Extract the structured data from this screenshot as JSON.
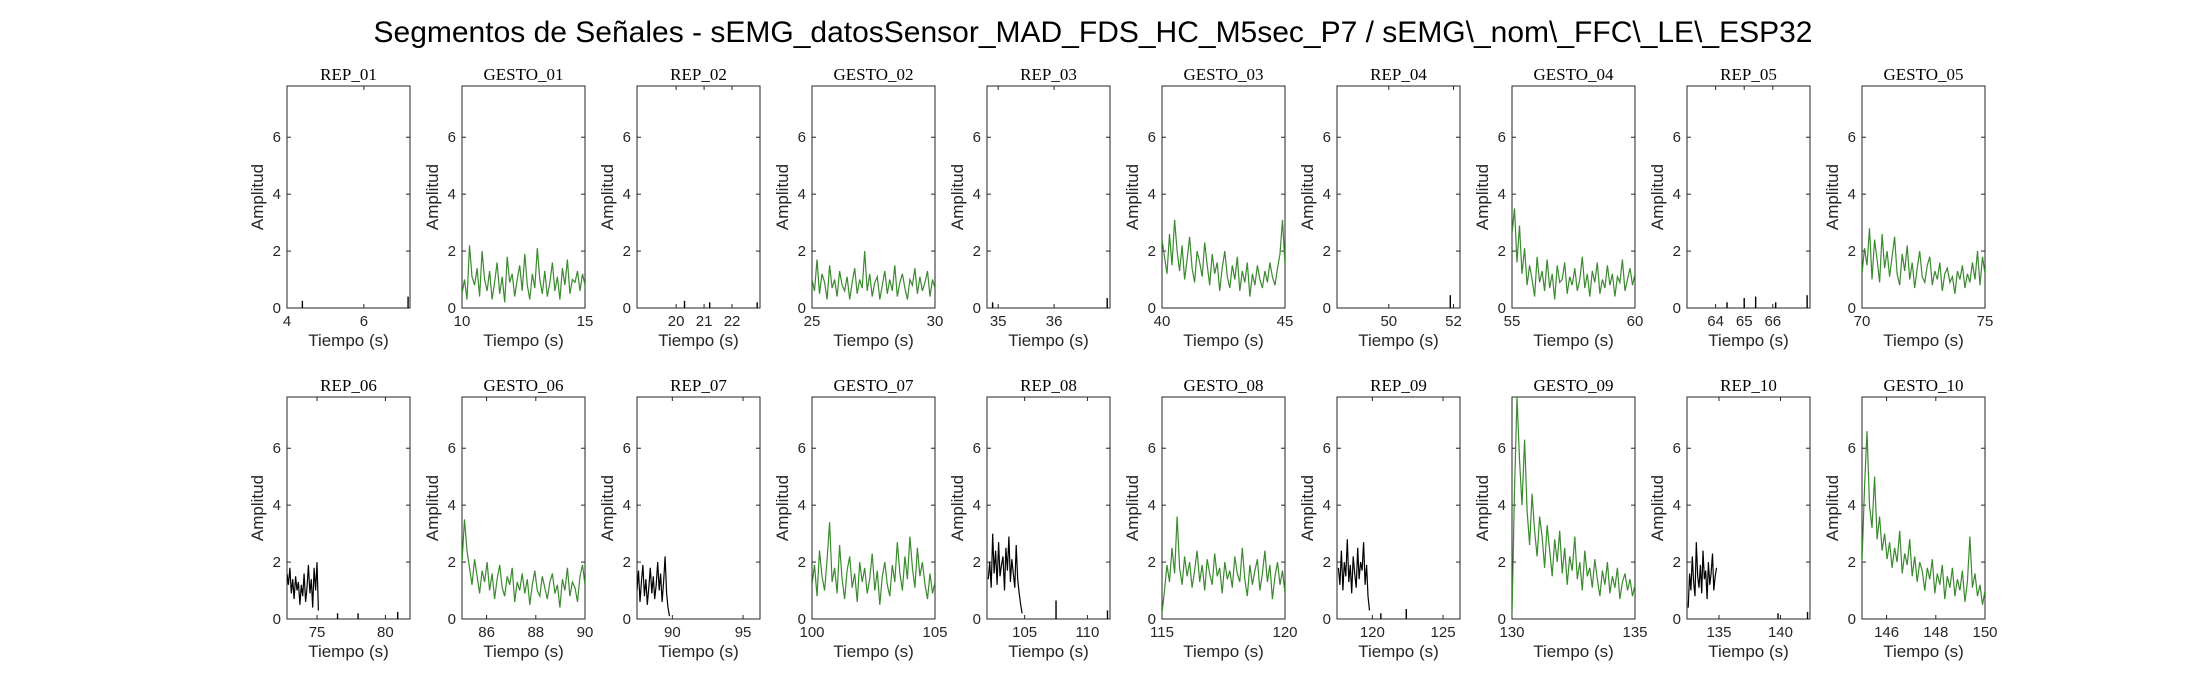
{
  "figure_title": "Segmentos de Señales - sEMG_datosSensor_MAD_FDS_HC_M5sec_P7 / sEMG\\_nom\\_FFC\\_LE\\_ESP32",
  "colors": {
    "rep": "#000000",
    "gesto": "#3a8a2e",
    "axis": "#262626"
  },
  "chart_data": [
    {
      "type": "line",
      "title": "REP_01",
      "xlabel": "Tiempo (s)",
      "ylabel": "Amplitud",
      "xlim": [
        4,
        7.2
      ],
      "ylim": [
        0,
        7.8
      ],
      "xticks": [
        4,
        6
      ],
      "yticks": [
        0,
        2,
        4,
        6
      ],
      "series_color": "rep",
      "x_range": [
        4,
        7.2
      ],
      "segments": [
        {
          "x": 4.4,
          "y": 0.25
        },
        {
          "x": 7.15,
          "y": 0.4
        }
      ]
    },
    {
      "type": "line",
      "title": "GESTO_01",
      "xlabel": "Tiempo (s)",
      "ylabel": "Amplitud",
      "xlim": [
        10,
        15
      ],
      "ylim": [
        0,
        7.8
      ],
      "xticks": [
        10,
        15
      ],
      "yticks": [
        0,
        2,
        4,
        6
      ],
      "series_color": "gesto",
      "x_range": [
        10,
        15
      ],
      "y": [
        0.5,
        1.0,
        0.3,
        2.2,
        1.1,
        0.8,
        1.4,
        0.4,
        2.0,
        1.0,
        0.6,
        1.3,
        0.3,
        0.9,
        1.6,
        0.5,
        1.1,
        0.2,
        1.8,
        0.9,
        1.2,
        0.4,
        1.0,
        1.5,
        0.6,
        1.9,
        0.8,
        0.3,
        1.2,
        0.7,
        2.1,
        1.0,
        0.5,
        1.3,
        0.4,
        0.9,
        1.6,
        0.6,
        1.1,
        0.3,
        1.4,
        0.8,
        1.7,
        0.5,
        1.0,
        0.9,
        1.3,
        0.6,
        1.2,
        0.8
      ]
    },
    {
      "type": "line",
      "title": "REP_02",
      "xlabel": "Tiempo (s)",
      "ylabel": "Amplitud",
      "xlim": [
        18.6,
        23.0
      ],
      "ylim": [
        0,
        7.8
      ],
      "xticks": [
        20,
        21,
        22
      ],
      "yticks": [
        0,
        2,
        4,
        6
      ],
      "series_color": "rep",
      "x_range": [
        18.6,
        23.0
      ],
      "segments": [
        {
          "x": 20.3,
          "y": 0.25
        },
        {
          "x": 21.2,
          "y": 0.2
        },
        {
          "x": 22.9,
          "y": 0.2
        }
      ]
    },
    {
      "type": "line",
      "title": "GESTO_02",
      "xlabel": "Tiempo (s)",
      "ylabel": "Amplitud",
      "xlim": [
        25,
        30
      ],
      "ylim": [
        0,
        7.8
      ],
      "xticks": [
        25,
        30
      ],
      "yticks": [
        0,
        2,
        4,
        6
      ],
      "series_color": "gesto",
      "x_range": [
        25,
        30
      ],
      "y": [
        1.0,
        0.6,
        1.7,
        0.5,
        1.2,
        0.9,
        0.3,
        1.5,
        0.7,
        1.0,
        0.4,
        1.3,
        0.8,
        0.6,
        1.1,
        0.3,
        0.9,
        1.4,
        0.5,
        1.0,
        0.7,
        2.0,
        0.6,
        1.2,
        0.4,
        0.9,
        1.1,
        0.3,
        0.8,
        1.3,
        0.5,
        1.0,
        0.6,
        1.5,
        0.4,
        0.9,
        1.2,
        0.7,
        0.3,
        1.0,
        0.8,
        1.4,
        0.5,
        1.1,
        0.6,
        0.9,
        1.3,
        0.4,
        1.0,
        0.7
      ]
    },
    {
      "type": "line",
      "title": "REP_03",
      "xlabel": "Tiempo (s)",
      "ylabel": "Amplitud",
      "xlim": [
        34.8,
        37.0
      ],
      "ylim": [
        0,
        7.8
      ],
      "xticks": [
        35,
        36
      ],
      "yticks": [
        0,
        2,
        4,
        6
      ],
      "series_color": "rep",
      "x_range": [
        34.8,
        37.0
      ],
      "segments": [
        {
          "x": 34.9,
          "y": 0.2
        },
        {
          "x": 36.95,
          "y": 0.35
        }
      ]
    },
    {
      "type": "line",
      "title": "GESTO_03",
      "xlabel": "Tiempo (s)",
      "ylabel": "Amplitud",
      "xlim": [
        40,
        45
      ],
      "ylim": [
        0,
        7.8
      ],
      "xticks": [
        40,
        45
      ],
      "yticks": [
        0,
        2,
        4,
        6
      ],
      "series_color": "gesto",
      "x_range": [
        40,
        45
      ],
      "y": [
        2.4,
        1.8,
        1.2,
        2.6,
        1.5,
        3.1,
        2.0,
        1.3,
        2.2,
        1.0,
        1.7,
        2.5,
        1.4,
        0.9,
        2.0,
        1.6,
        1.1,
        2.3,
        1.5,
        0.8,
        1.9,
        1.2,
        1.6,
        0.6,
        1.4,
        2.0,
        1.1,
        0.7,
        1.5,
        1.0,
        1.8,
        0.6,
        1.3,
        0.9,
        1.6,
        0.4,
        1.2,
        0.8,
        1.5,
        1.0,
        0.7,
        1.3,
        0.9,
        1.6,
        1.1,
        0.8,
        1.4,
        1.9,
        3.1,
        1.5
      ]
    },
    {
      "type": "line",
      "title": "REP_04",
      "xlabel": "Tiempo (s)",
      "ylabel": "Amplitud",
      "xlim": [
        48.4,
        52.2
      ],
      "ylim": [
        0,
        7.8
      ],
      "xticks": [
        50,
        52
      ],
      "yticks": [
        0,
        2,
        4,
        6
      ],
      "series_color": "rep",
      "x_range": [
        48.4,
        52.2
      ],
      "segments": [
        {
          "x": 51.9,
          "y": 0.45
        }
      ]
    },
    {
      "type": "line",
      "title": "GESTO_04",
      "xlabel": "Tiempo (s)",
      "ylabel": "Amplitud",
      "xlim": [
        55,
        60
      ],
      "ylim": [
        0,
        7.8
      ],
      "xticks": [
        55,
        60
      ],
      "yticks": [
        0,
        2,
        4,
        6
      ],
      "series_color": "gesto",
      "x_range": [
        55,
        60
      ],
      "y": [
        2.6,
        3.5,
        1.6,
        2.9,
        1.2,
        2.1,
        0.8,
        1.5,
        1.0,
        0.4,
        1.8,
        0.9,
        1.3,
        0.6,
        1.7,
        0.7,
        1.2,
        0.3,
        1.5,
        0.9,
        1.0,
        1.6,
        0.5,
        1.1,
        0.8,
        1.4,
        0.6,
        1.0,
        1.8,
        0.7,
        1.2,
        0.4,
        1.3,
        0.9,
        1.6,
        0.5,
        1.0,
        0.7,
        1.5,
        0.8,
        1.2,
        0.4,
        1.1,
        0.9,
        1.7,
        0.6,
        1.0,
        1.4,
        0.8,
        1.2
      ]
    },
    {
      "type": "line",
      "title": "REP_05",
      "xlabel": "Tiempo (s)",
      "ylabel": "Amplitud",
      "xlim": [
        63.0,
        67.3
      ],
      "ylim": [
        0,
        7.8
      ],
      "xticks": [
        64,
        65,
        66
      ],
      "yticks": [
        0,
        2,
        4,
        6
      ],
      "series_color": "rep",
      "x_range": [
        63.0,
        67.3
      ],
      "segments": [
        {
          "x": 64.4,
          "y": 0.2
        },
        {
          "x": 65.0,
          "y": 0.35
        },
        {
          "x": 65.4,
          "y": 0.4
        },
        {
          "x": 66.1,
          "y": 0.2
        },
        {
          "x": 67.2,
          "y": 0.45
        }
      ]
    },
    {
      "type": "line",
      "title": "GESTO_05",
      "xlabel": "Tiempo (s)",
      "ylabel": "Amplitud",
      "xlim": [
        70,
        75
      ],
      "ylim": [
        0,
        7.8
      ],
      "xticks": [
        70,
        75
      ],
      "yticks": [
        0,
        2,
        4,
        6
      ],
      "series_color": "gesto",
      "x_range": [
        70,
        75
      ],
      "y": [
        1.2,
        2.1,
        1.5,
        2.8,
        1.0,
        2.4,
        1.7,
        0.9,
        2.6,
        1.4,
        2.0,
        1.1,
        1.8,
        2.5,
        1.2,
        0.8,
        1.9,
        1.3,
        2.2,
        1.0,
        1.6,
        0.7,
        1.4,
        2.0,
        1.1,
        0.9,
        1.5,
        1.8,
        0.8,
        1.3,
        1.0,
        1.6,
        0.6,
        1.2,
        1.4,
        0.9,
        1.1,
        0.5,
        1.3,
        1.0,
        1.5,
        0.7,
        1.2,
        0.9,
        1.6,
        1.0,
        2.0,
        0.8,
        1.8,
        1.2
      ]
    },
    {
      "type": "line",
      "title": "REP_06",
      "xlabel": "Tiempo (s)",
      "ylabel": "Amplitud",
      "xlim": [
        72.8,
        81.8
      ],
      "ylim": [
        0,
        7.8
      ],
      "xticks": [
        75,
        80
      ],
      "yticks": [
        0,
        2,
        4,
        6
      ],
      "series_color": "rep",
      "x_range": [
        72.8,
        81.8
      ],
      "trace_x": [
        72.8,
        75.1
      ],
      "y": [
        1.6,
        1.2,
        1.8,
        0.9,
        1.4,
        0.7,
        1.5,
        1.0,
        1.3,
        0.5,
        1.2,
        0.8,
        1.6,
        0.6,
        1.1,
        1.9,
        0.9,
        1.4,
        0.4,
        1.8,
        1.0,
        2.0,
        0.3
      ],
      "segments": [
        {
          "x": 76.5,
          "y": 0.2
        },
        {
          "x": 78.0,
          "y": 0.2
        },
        {
          "x": 80.9,
          "y": 0.25
        }
      ]
    },
    {
      "type": "line",
      "title": "GESTO_06",
      "xlabel": "Tiempo (s)",
      "ylabel": "Amplitud",
      "xlim": [
        85,
        90
      ],
      "ylim": [
        0,
        7.8
      ],
      "xticks": [
        86,
        88,
        90
      ],
      "yticks": [
        0,
        2,
        4,
        6
      ],
      "series_color": "gesto",
      "x_range": [
        85,
        90
      ],
      "y": [
        2.0,
        3.5,
        2.4,
        1.8,
        1.2,
        2.1,
        1.5,
        0.9,
        1.7,
        1.3,
        2.0,
        1.0,
        1.6,
        0.7,
        1.4,
        1.9,
        1.1,
        0.8,
        1.5,
        1.2,
        1.8,
        0.6,
        1.3,
        1.0,
        1.6,
        0.9,
        1.4,
        0.5,
        1.2,
        1.7,
        1.0,
        0.8,
        1.5,
        1.1,
        0.7,
        1.3,
        1.6,
        0.9,
        1.2,
        0.4,
        1.4,
        1.0,
        1.8,
        0.8,
        1.3,
        1.1,
        0.6,
        1.5,
        1.9,
        1.2
      ]
    },
    {
      "type": "line",
      "title": "REP_07",
      "xlabel": "Tiempo (s)",
      "ylabel": "Amplitud",
      "xlim": [
        87.5,
        96.2
      ],
      "ylim": [
        0,
        7.8
      ],
      "xticks": [
        90,
        95
      ],
      "yticks": [
        0,
        2,
        4,
        6
      ],
      "series_color": "rep",
      "x_range": [
        87.5,
        96.2
      ],
      "trace_x": [
        87.5,
        89.8
      ],
      "y": [
        1.0,
        1.7,
        0.6,
        1.3,
        1.9,
        0.8,
        1.4,
        0.5,
        1.1,
        1.8,
        0.9,
        1.5,
        0.7,
        1.2,
        2.0,
        1.0,
        1.6,
        0.6,
        1.3,
        2.2,
        0.9,
        0.4,
        0.1
      ]
    },
    {
      "type": "line",
      "title": "GESTO_07",
      "xlabel": "Tiempo (s)",
      "ylabel": "Amplitud",
      "xlim": [
        100,
        105
      ],
      "ylim": [
        0,
        7.8
      ],
      "xticks": [
        100,
        105
      ],
      "yticks": [
        0,
        2,
        4,
        6
      ],
      "series_color": "gesto",
      "x_range": [
        100,
        105
      ],
      "y": [
        1.2,
        1.9,
        0.8,
        2.4,
        1.5,
        1.0,
        2.1,
        3.4,
        1.3,
        1.8,
        0.9,
        2.6,
        1.4,
        0.7,
        1.7,
        2.2,
        1.1,
        1.6,
        0.6,
        2.0,
        1.3,
        1.8,
        0.9,
        1.4,
        2.3,
        1.0,
        1.7,
        0.5,
        1.5,
        2.0,
        1.2,
        0.8,
        1.9,
        1.3,
        2.7,
        1.6,
        1.0,
        2.2,
        1.4,
        2.9,
        1.8,
        1.1,
        2.5,
        1.5,
        2.0,
        1.2,
        0.7,
        1.6,
        0.9,
        1.3
      ]
    },
    {
      "type": "line",
      "title": "REP_08",
      "xlabel": "Tiempo (s)",
      "ylabel": "Amplitud",
      "xlim": [
        102.0,
        111.8
      ],
      "ylim": [
        0,
        7.8
      ],
      "xticks": [
        105,
        110
      ],
      "yticks": [
        0,
        2,
        4,
        6
      ],
      "series_color": "rep",
      "x_range": [
        102.0,
        111.8
      ],
      "trace_x": [
        102.1,
        104.8
      ],
      "y": [
        1.4,
        2.0,
        1.1,
        3.0,
        1.6,
        2.4,
        1.2,
        2.7,
        1.5,
        1.9,
        2.2,
        1.0,
        2.5,
        1.7,
        2.9,
        1.3,
        2.1,
        1.6,
        1.1,
        2.6,
        1.4,
        0.9,
        0.5,
        0.2
      ],
      "segments": [
        {
          "x": 107.5,
          "y": 0.65
        },
        {
          "x": 111.6,
          "y": 0.3
        }
      ]
    },
    {
      "type": "line",
      "title": "GESTO_08",
      "xlabel": "Tiempo (s)",
      "ylabel": "Amplitud",
      "xlim": [
        115,
        120
      ],
      "ylim": [
        0,
        7.8
      ],
      "xticks": [
        115,
        120
      ],
      "yticks": [
        0,
        2,
        4,
        6
      ],
      "series_color": "gesto",
      "x_range": [
        115,
        120
      ],
      "y": [
        0.2,
        1.0,
        1.9,
        1.3,
        2.5,
        1.6,
        3.6,
        1.8,
        1.2,
        2.2,
        1.5,
        2.0,
        1.1,
        1.7,
        2.4,
        1.3,
        1.9,
        1.0,
        2.1,
        1.6,
        1.2,
        2.3,
        1.5,
        1.8,
        0.9,
        2.0,
        1.4,
        1.7,
        1.1,
        2.2,
        1.6,
        1.3,
        2.5,
        1.4,
        0.8,
        1.9,
        1.2,
        1.7,
        2.1,
        1.0,
        1.6,
        2.4,
        1.3,
        1.9,
        0.7,
        1.5,
        2.0,
        1.2,
        1.7,
        0.9
      ]
    },
    {
      "type": "line",
      "title": "REP_09",
      "xlabel": "Tiempo (s)",
      "ylabel": "Amplitud",
      "xlim": [
        117.5,
        126.2
      ],
      "ylim": [
        0,
        7.8
      ],
      "xticks": [
        120,
        125
      ],
      "yticks": [
        0,
        2,
        4,
        6
      ],
      "series_color": "rep",
      "x_range": [
        117.5,
        126.2
      ],
      "trace_x": [
        117.6,
        119.8
      ],
      "y": [
        1.8,
        1.2,
        2.4,
        1.0,
        2.0,
        1.5,
        2.8,
        1.3,
        1.9,
        0.9,
        2.2,
        1.6,
        1.1,
        2.5,
        1.4,
        2.0,
        1.7,
        2.7,
        1.2,
        1.9,
        0.8,
        0.3
      ],
      "segments": [
        {
          "x": 120.6,
          "y": 0.2
        },
        {
          "x": 122.4,
          "y": 0.35
        }
      ]
    },
    {
      "type": "line",
      "title": "GESTO_09",
      "xlabel": "Tiempo (s)",
      "ylabel": "Amplitud",
      "xlim": [
        130,
        135
      ],
      "ylim": [
        0,
        7.8
      ],
      "xticks": [
        130,
        135
      ],
      "yticks": [
        0,
        2,
        4,
        6
      ],
      "series_color": "gesto",
      "x_range": [
        130,
        135
      ],
      "y": [
        0.1,
        4.5,
        7.8,
        5.6,
        4.0,
        6.3,
        3.8,
        2.6,
        4.4,
        3.1,
        2.2,
        3.6,
        2.9,
        1.8,
        3.3,
        2.4,
        1.5,
        2.8,
        2.0,
        3.1,
        1.6,
        2.5,
        1.2,
        2.2,
        1.7,
        2.9,
        1.4,
        2.0,
        1.0,
        2.4,
        1.5,
        1.8,
        1.1,
        2.1,
        1.4,
        0.8,
        1.7,
        1.2,
        2.0,
        0.9,
        1.5,
        1.1,
        1.8,
        0.7,
        1.3,
        1.6,
        1.0,
        1.4,
        0.8,
        1.2
      ]
    },
    {
      "type": "line",
      "title": "REP_10",
      "xlabel": "Tiempo (s)",
      "ylabel": "Amplitud",
      "xlim": [
        132.4,
        142.4
      ],
      "ylim": [
        0,
        7.8
      ],
      "xticks": [
        135,
        140
      ],
      "yticks": [
        0,
        2,
        4,
        6
      ],
      "series_color": "rep",
      "x_range": [
        132.4,
        142.4
      ],
      "trace_x": [
        132.5,
        134.8
      ],
      "y": [
        0.4,
        1.6,
        1.0,
        2.2,
        1.3,
        0.8,
        2.7,
        1.5,
        1.1,
        1.9,
        0.9,
        2.4,
        1.4,
        1.7,
        0.7,
        2.0,
        1.2,
        1.6,
        2.3,
        1.0,
        1.5,
        1.8
      ],
      "segments": [
        {
          "x": 139.8,
          "y": 0.2
        },
        {
          "x": 142.2,
          "y": 0.25
        }
      ]
    },
    {
      "type": "line",
      "title": "GESTO_10",
      "xlabel": "Tiempo (s)",
      "ylabel": "Amplitud",
      "xlim": [
        145,
        150
      ],
      "ylim": [
        0,
        7.8
      ],
      "xticks": [
        146,
        148,
        150
      ],
      "yticks": [
        0,
        2,
        4,
        6
      ],
      "series_color": "gesto",
      "x_range": [
        145,
        150
      ],
      "y": [
        2.0,
        4.6,
        6.6,
        4.0,
        3.2,
        5.0,
        2.8,
        3.6,
        2.4,
        3.0,
        2.1,
        2.7,
        1.8,
        2.5,
        2.0,
        3.1,
        1.6,
        2.3,
        1.9,
        2.8,
        1.5,
        2.2,
        1.3,
        2.0,
        1.7,
        1.0,
        1.8,
        1.4,
        2.1,
        0.9,
        1.6,
        1.2,
        1.9,
        0.7,
        1.5,
        1.1,
        1.8,
        0.8,
        1.4,
        1.0,
        1.7,
        0.6,
        1.3,
        2.9,
        1.1,
        1.6,
        0.8,
        1.2,
        0.5,
        1.0
      ]
    }
  ]
}
